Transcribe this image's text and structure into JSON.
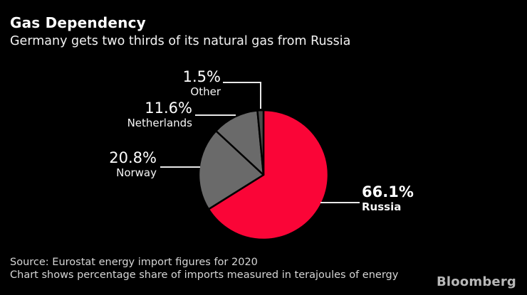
{
  "header": {
    "title": "Gas Dependency",
    "subtitle": "Germany gets two thirds of its natural gas from Russia"
  },
  "chart_data": {
    "type": "pie",
    "title": "Gas Dependency",
    "subtitle": "Germany gets two thirds of its natural gas from Russia",
    "unit": "percent",
    "start_angle_deg": 0,
    "direction": "clockwise",
    "divider_color": "#000000",
    "leader_line_color": "#e8e8e8",
    "background_color": "#000000",
    "slices": [
      {
        "label": "Russia",
        "value": 66.1,
        "display": "66.1%",
        "color": "#fa0537",
        "emphasized": true
      },
      {
        "label": "Norway",
        "value": 20.8,
        "display": "20.8%",
        "color": "#6a6a6a",
        "emphasized": false
      },
      {
        "label": "Netherlands",
        "value": 11.6,
        "display": "11.6%",
        "color": "#6a6a6a",
        "emphasized": false
      },
      {
        "label": "Other",
        "value": 1.5,
        "display": "1.5%",
        "color": "#4b4b4b",
        "emphasized": false
      }
    ]
  },
  "footer": {
    "source_line1": "Source: Eurostat energy import figures for 2020",
    "source_line2": "Chart shows percentage share of imports measured in terajoules of energy",
    "brand": "Bloomberg"
  }
}
